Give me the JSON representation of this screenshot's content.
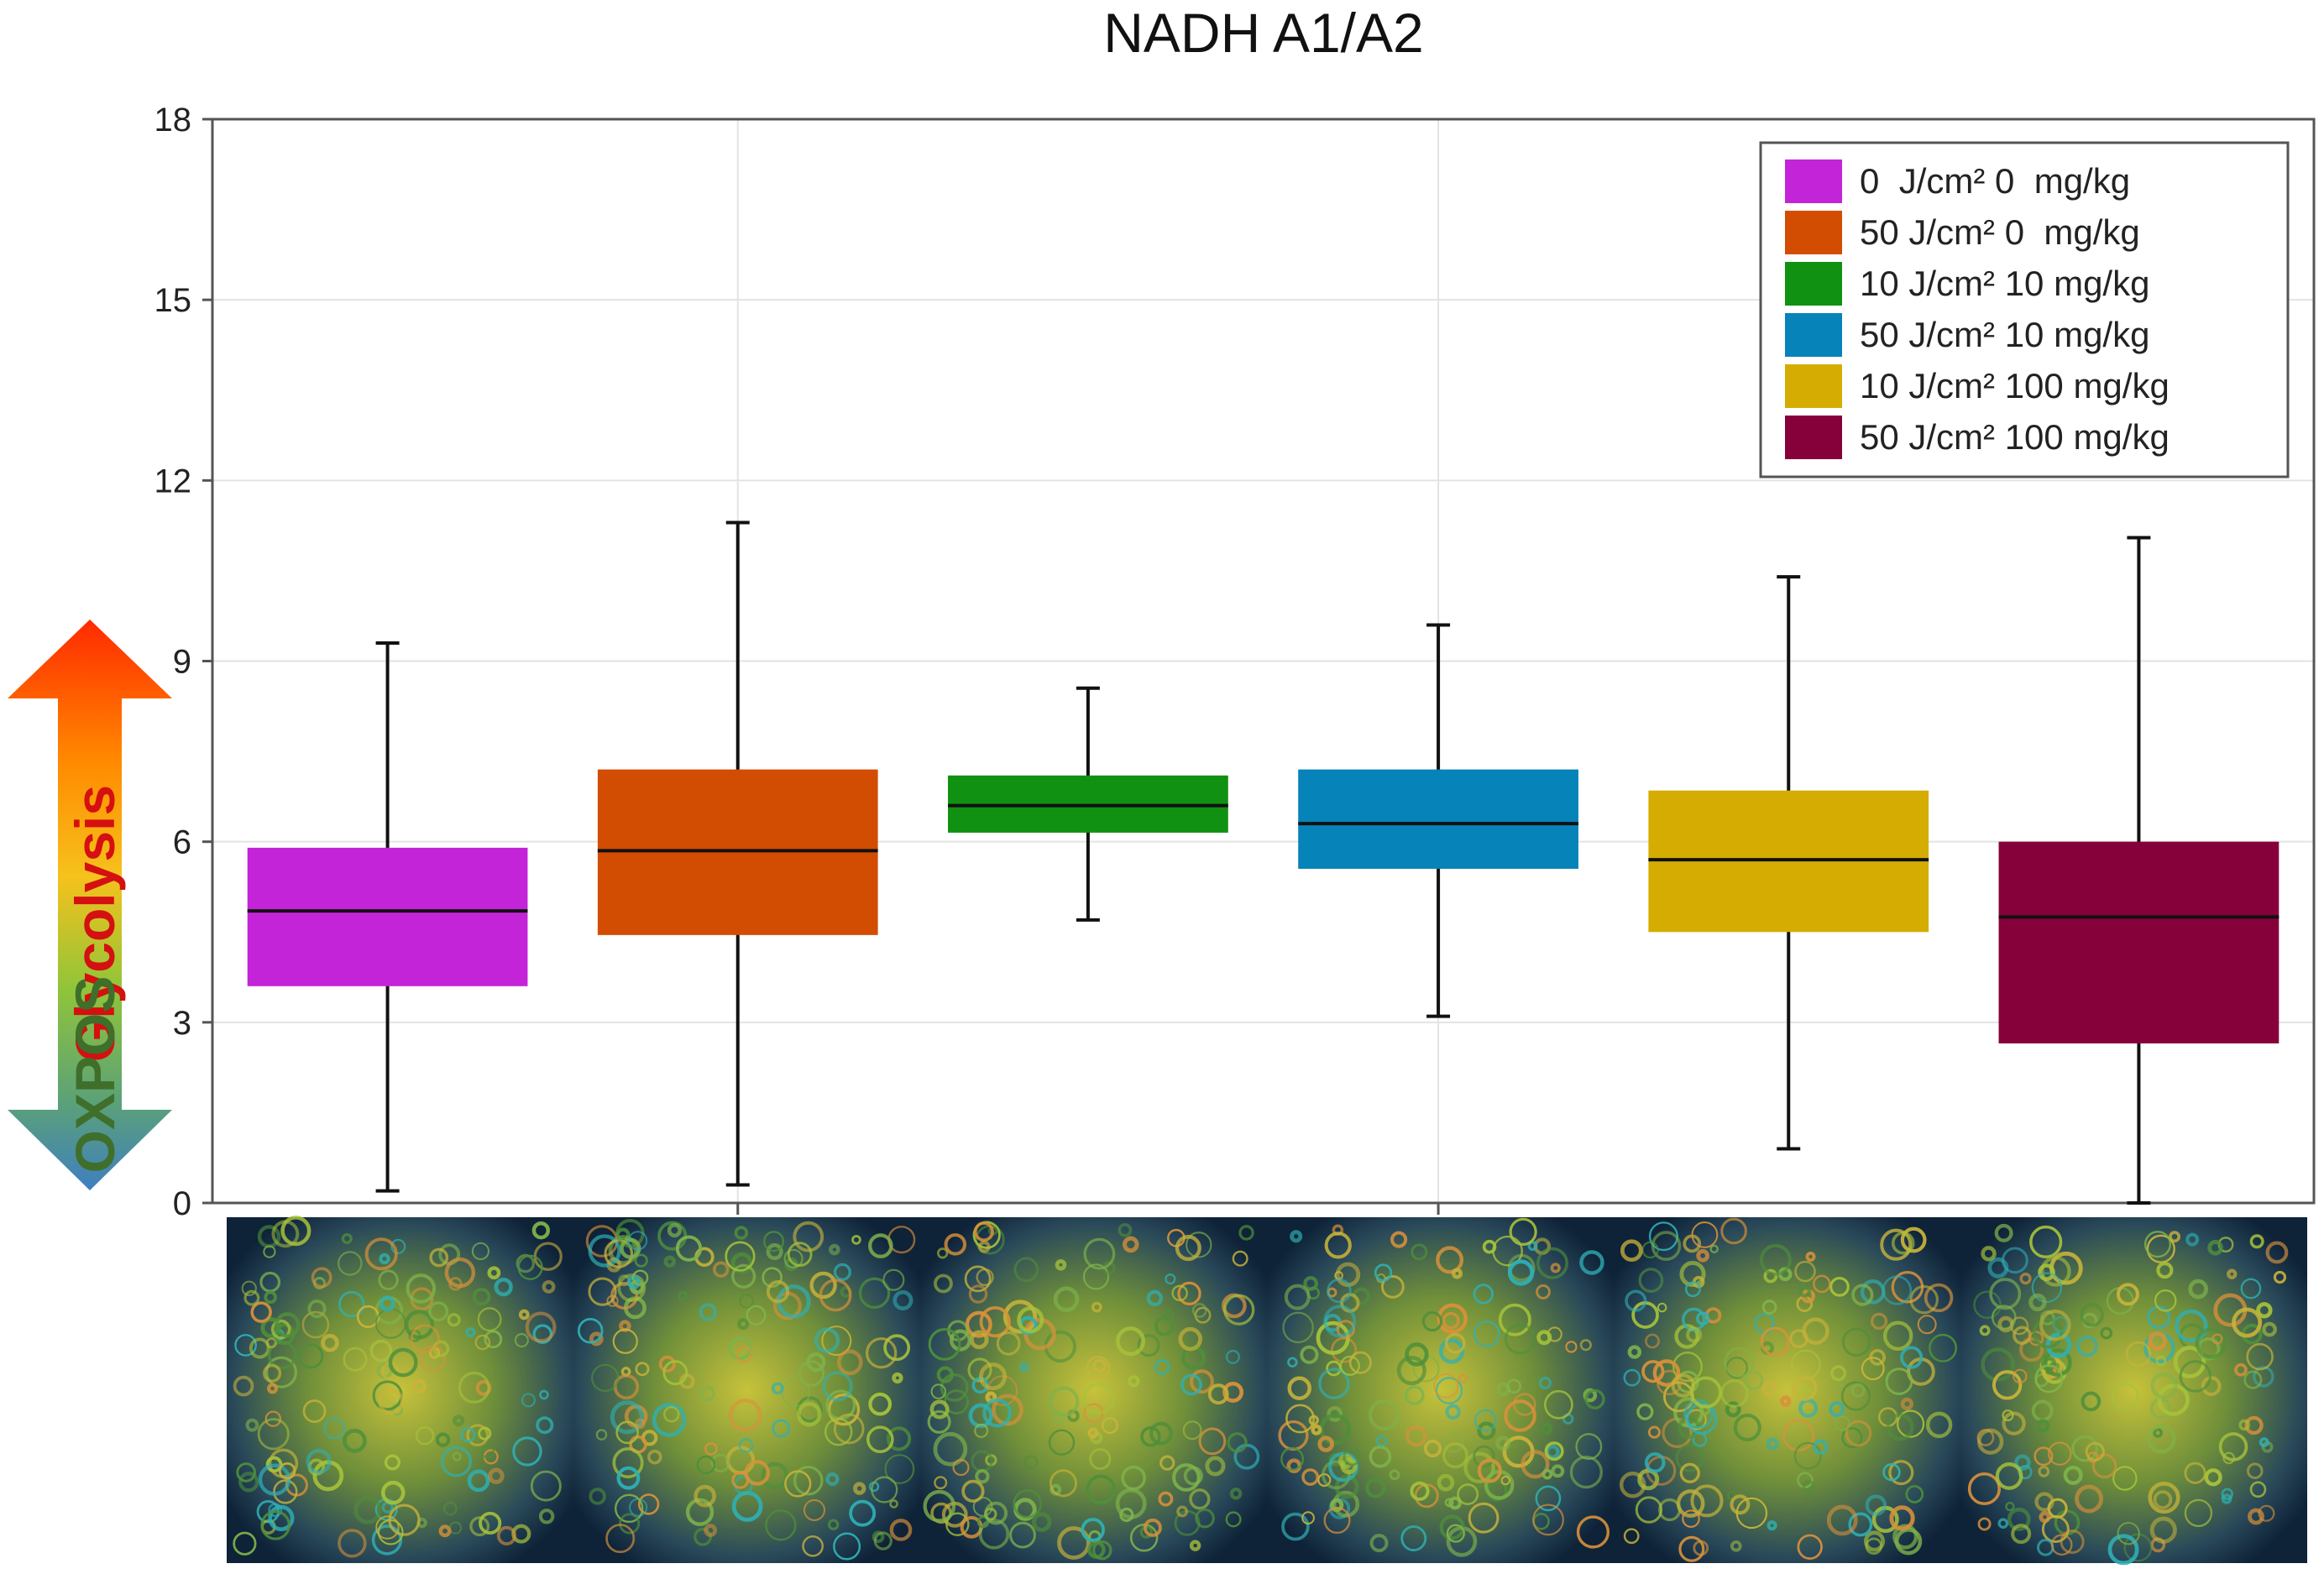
{
  "chart_data": {
    "type": "box",
    "title": "NADH A1/A2",
    "xlabel": "",
    "ylabel": "",
    "ylim": [
      0,
      18
    ],
    "yticks": [
      0,
      3,
      6,
      9,
      12,
      15,
      18
    ],
    "grid": true,
    "legend_position": "top-right",
    "series": [
      {
        "name": "0  J/cm² 0  mg/kg",
        "color": "#c424d8",
        "whisker_low": 0.2,
        "q1": 3.6,
        "median": 4.85,
        "q3": 5.9,
        "whisker_high": 9.3
      },
      {
        "name": "50 J/cm² 0  mg/kg",
        "color": "#d24d02",
        "whisker_low": 0.3,
        "q1": 4.45,
        "median": 5.85,
        "q3": 7.2,
        "whisker_high": 11.3
      },
      {
        "name": "10 J/cm² 10 mg/kg",
        "color": "#119111",
        "whisker_low": 4.7,
        "q1": 6.15,
        "median": 6.6,
        "q3": 7.1,
        "whisker_high": 8.55
      },
      {
        "name": "50 J/cm² 10 mg/kg",
        "color": "#0683b8",
        "whisker_low": 3.1,
        "q1": 5.55,
        "median": 6.3,
        "q3": 7.2,
        "whisker_high": 9.6
      },
      {
        "name": "10 J/cm² 100 mg/kg",
        "color": "#d5ad02",
        "whisker_low": 0.9,
        "q1": 4.5,
        "median": 5.7,
        "q3": 6.85,
        "whisker_high": 10.4
      },
      {
        "name": "50 J/cm² 100 mg/kg",
        "color": "#86013a",
        "whisker_low": 0.0,
        "q1": 2.65,
        "median": 4.75,
        "q3": 6.0,
        "whisker_high": 11.05
      }
    ],
    "side_arrow": {
      "top_label": "Glycolysis",
      "bottom_label": "OXPOS"
    }
  }
}
